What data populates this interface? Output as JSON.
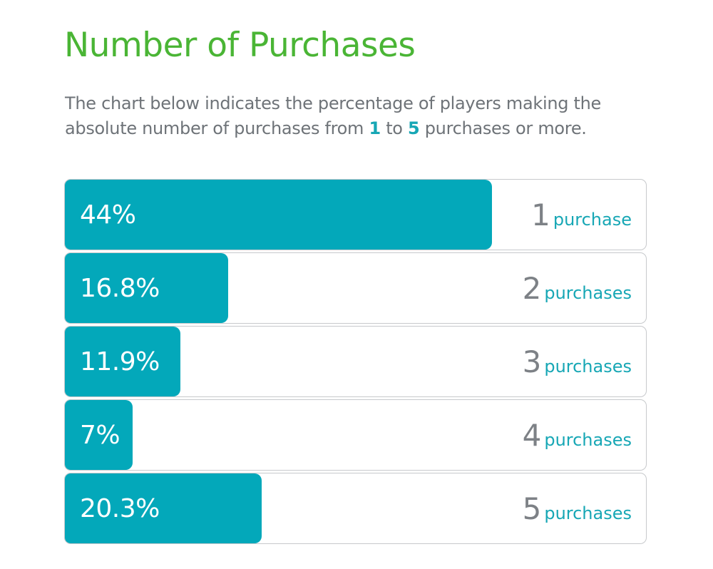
{
  "title": "Number of Purchases",
  "subtitle": {
    "part1": "The chart below indicates the percentage of players making the absolute number of purchases from ",
    "from": "1",
    "mid": " to ",
    "to": "5",
    "part2": " purchases or more."
  },
  "colors": {
    "title": "#4ab535",
    "bar": "#03a8ba",
    "accent_text": "#17a7b5",
    "body_text": "#6e7378",
    "border": "#c7c9cc"
  },
  "chart_data": {
    "type": "bar",
    "orientation": "horizontal",
    "title": "Number of Purchases",
    "xlim": [
      0,
      60
    ],
    "categories": [
      "1",
      "2",
      "3",
      "4",
      "5"
    ],
    "values": [
      44,
      16.8,
      11.9,
      7,
      20.3
    ],
    "value_labels": [
      "44%",
      "16.8%",
      "11.9%",
      "7%",
      "20.3%"
    ],
    "units": [
      "purchase",
      "purchases",
      "purchases",
      "purchases",
      "purchases"
    ]
  }
}
